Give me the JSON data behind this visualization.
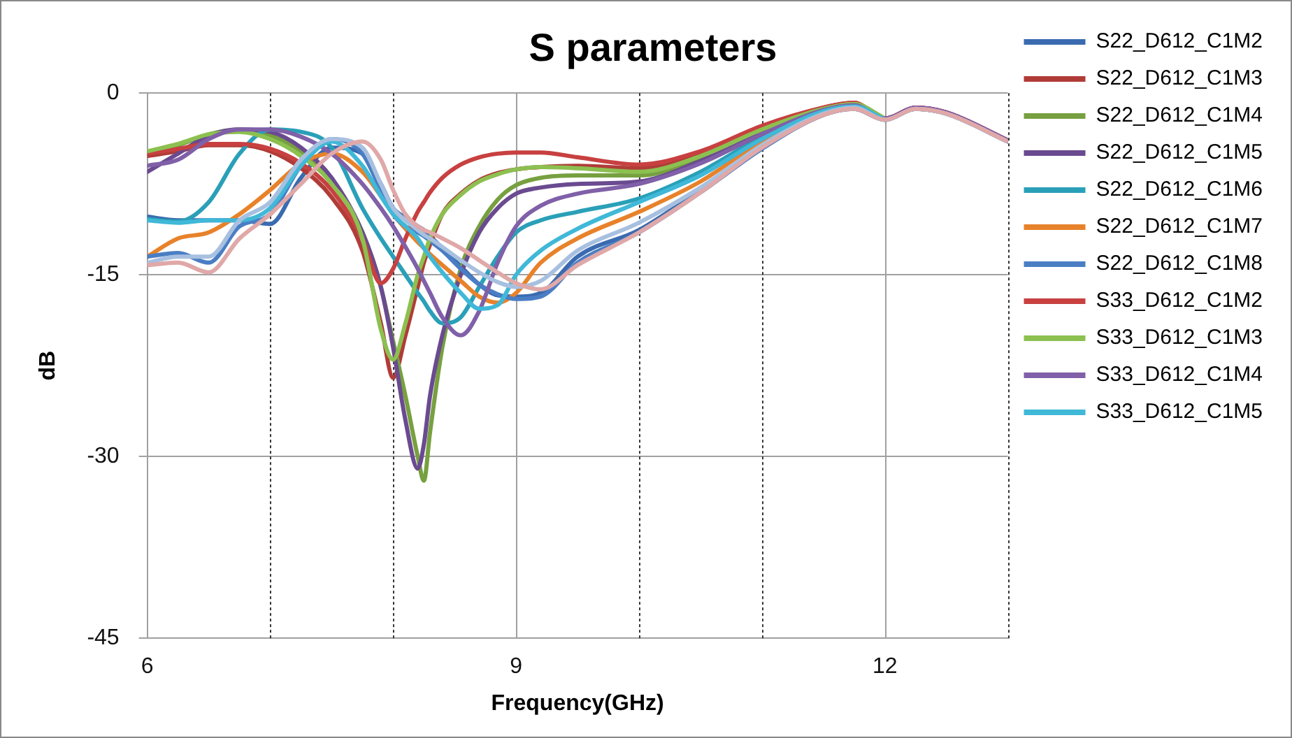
{
  "chart_data": {
    "type": "line",
    "title": "S parameters",
    "xlabel": "Frequency(GHz)",
    "ylabel": "dB",
    "x": [
      6,
      6.25,
      6.5,
      6.75,
      7,
      7.25,
      7.5,
      7.75,
      7.9,
      8,
      8.1,
      8.2,
      8.25,
      8.3,
      8.4,
      8.55,
      8.7,
      8.85,
      9,
      9.2,
      9.5,
      10,
      10.5,
      11,
      11.5,
      11.75,
      12,
      12.25,
      12.5,
      13
    ],
    "xlim": [
      6,
      13
    ],
    "xticks": [
      6,
      {
        "value": 7,
        "label": null
      },
      {
        "value": 8,
        "label": null
      },
      9,
      {
        "value": 10,
        "label": null
      },
      {
        "value": 11,
        "label": null
      },
      12,
      {
        "value": 13,
        "label": null
      }
    ],
    "ylim": [
      -45,
      0
    ],
    "yticks": [
      -45,
      -30,
      -15,
      0
    ],
    "grid": true,
    "legend": "right",
    "marker": "none",
    "line_style": "solid",
    "series": [
      {
        "name": "S22_D612_C1M2",
        "color": "#3a6bb0",
        "values": [
          -10.2,
          -10.5,
          -10.5,
          -10.5,
          -10.8,
          -7,
          -4.5,
          -5,
          -7.5,
          -9.5,
          -10.3,
          -11,
          -11.3,
          -11.8,
          -12.8,
          -14.3,
          -15.8,
          -16.7,
          -16.8,
          -16.5,
          -13.5,
          -11.3,
          -8,
          -4.5,
          -1.8,
          -1.3,
          -2.2,
          -1.3,
          -1.7,
          -4
        ]
      },
      {
        "name": "S22_D612_C1M3",
        "color": "#b03c38",
        "values": [
          -5.2,
          -4.8,
          -4.3,
          -4.3,
          -4.8,
          -6.2,
          -8.6,
          -13,
          -19,
          -23.5,
          -20,
          -16,
          -14,
          -12.5,
          -10,
          -8.3,
          -7.2,
          -6.6,
          -6.3,
          -6.1,
          -6,
          -6.2,
          -5,
          -2.9,
          -1.2,
          -0.8,
          -2.1,
          -1.2,
          -1.6,
          -3.9
        ]
      },
      {
        "name": "S22_D612_C1M4",
        "color": "#77a040",
        "values": [
          -4.9,
          -4.3,
          -3.4,
          -3,
          -3.5,
          -4.8,
          -7.3,
          -11.5,
          -16,
          -20.5,
          -25,
          -30,
          -32,
          -28,
          -21,
          -14.5,
          -11,
          -8.8,
          -7.6,
          -7,
          -6.8,
          -6.8,
          -5.4,
          -3.1,
          -1.3,
          -0.9,
          -2.1,
          null,
          null,
          null
        ]
      },
      {
        "name": "S22_D612_C1M5",
        "color": "#6a4a90",
        "values": [
          -6.5,
          -5,
          -3.5,
          -3,
          -3.2,
          -4.5,
          -7,
          -11.5,
          -16,
          -21,
          -27,
          -31,
          -29,
          -25,
          -20,
          -15,
          -11.5,
          -9.5,
          -8.3,
          -7.8,
          -7.5,
          -7.3,
          -5.6,
          -3.3,
          -1.4,
          -1,
          -2.1,
          -1.2,
          -1.6,
          -3.9
        ]
      },
      {
        "name": "S22_D612_C1M6",
        "color": "#2aa0b8",
        "values": [
          -10.4,
          -10.6,
          -9,
          -5,
          -3,
          -3.2,
          -4.5,
          -9.5,
          -12,
          -13.5,
          -15,
          -16.5,
          -17.2,
          -18,
          -19,
          -18.5,
          -16,
          -13.5,
          -11.5,
          -10.5,
          -9.8,
          -8.7,
          -6.5,
          -3.6,
          -1.5,
          -1.1,
          -2.2,
          -1.3,
          -1.7,
          -4
        ]
      },
      {
        "name": "S22_D612_C1M7",
        "color": "#e8822a",
        "values": [
          -13.5,
          -12,
          -11.5,
          -10,
          -8,
          -5.8,
          -5,
          -6.5,
          -8.5,
          -10,
          -11.2,
          -12.3,
          -12.8,
          -13.3,
          -14.2,
          -15.5,
          -16.8,
          -17.3,
          -16.5,
          -14,
          -12,
          -9.8,
          -7.3,
          -4,
          -1.6,
          null,
          null,
          null,
          null,
          null
        ]
      },
      {
        "name": "S22_D612_C1M8",
        "color": "#4a7ec4",
        "values": [
          -13.5,
          -13.2,
          -14,
          -11,
          -10,
          -6,
          -3.8,
          -5,
          -8,
          -10,
          -11,
          -11.5,
          -11.8,
          -12.2,
          -13,
          -14.5,
          -15.8,
          -16.6,
          -17,
          -16.8,
          -14,
          -11.5,
          -8.2,
          -4.6,
          -1.8,
          -1.3,
          -2.2,
          -1.3,
          -1.7,
          -4
        ]
      },
      {
        "name": "S33_D612_C1M2",
        "color": "#c84040",
        "values": [
          -5,
          -4.6,
          -4.2,
          -4.2,
          -4.6,
          -5.8,
          -8,
          -12,
          -15.7,
          -14.5,
          -12,
          -9.8,
          -9,
          -8.2,
          -7,
          -5.9,
          -5.3,
          -5,
          -4.9,
          -4.9,
          -5.3,
          -5.9,
          -4.8,
          -2.7,
          -1.2,
          -0.8,
          -2.1,
          -1.2,
          -1.6,
          -3.9
        ]
      },
      {
        "name": "S33_D612_C1M3",
        "color": "#8cc050",
        "values": [
          -4.8,
          -4.2,
          -3.4,
          -3.2,
          -3.8,
          -5.2,
          -7.5,
          -12,
          -19.5,
          -22,
          -19,
          -15,
          -13.5,
          -12,
          -10,
          -8.4,
          -7.3,
          -6.7,
          -6.3,
          -6.1,
          -6.2,
          -6.5,
          -5.2,
          -3,
          -1.3,
          -0.9,
          -2.1,
          null,
          null,
          null
        ]
      },
      {
        "name": "S33_D612_C1M4",
        "color": "#8060a8",
        "values": [
          -6,
          -5.5,
          -3.8,
          -3,
          -3,
          -3.6,
          -5,
          -7.5,
          -9.5,
          -11,
          -12.7,
          -14.5,
          -15.5,
          -16.5,
          -18.5,
          -20,
          -18,
          -14,
          -11,
          -9.3,
          -8.3,
          -7.5,
          -5.8,
          -3.4,
          -1.4,
          -1,
          -2.1,
          -1.2,
          -1.6,
          -3.9
        ]
      },
      {
        "name": "S33_D612_C1M5",
        "color": "#40b8d8",
        "values": [
          -10.5,
          -10.7,
          -10.5,
          -10.5,
          -9.5,
          -6,
          -4,
          -6,
          -8.5,
          -10,
          -11,
          -12,
          -12.8,
          -13.5,
          -14.8,
          -16.5,
          -17.8,
          -17.5,
          -15,
          -13,
          -11.2,
          -9,
          -6.8,
          -3.8,
          -1.5,
          -1.1,
          -2.2,
          null,
          null,
          null
        ]
      },
      {
        "color": "#a8c0e0",
        "values": [
          -14,
          -13.5,
          -13.5,
          -10.5,
          -9,
          -5.5,
          -3.8,
          -4.5,
          -7.5,
          -9.5,
          -10.5,
          -11.3,
          -11.7,
          -12,
          -12.7,
          -13.8,
          -14.8,
          -15.6,
          -16,
          -15.5,
          -13,
          -10.7,
          -7.8,
          -4.3,
          -1.7,
          -1.2,
          -2.2,
          -1.3,
          -1.7,
          -4
        ]
      },
      {
        "color": "#e0a8a8",
        "values": [
          -14.2,
          -14,
          -14.8,
          -12,
          -10,
          -7.5,
          -5,
          -4,
          -5.5,
          -8,
          -10,
          -11,
          -11.3,
          -11.5,
          -12,
          -12.8,
          -13.8,
          -14.8,
          -15.7,
          -16.2,
          -14.2,
          -11.5,
          -8.2,
          -4.5,
          -1.8,
          -1.3,
          -2.2,
          -1.3,
          -1.7,
          -4
        ]
      }
    ]
  }
}
